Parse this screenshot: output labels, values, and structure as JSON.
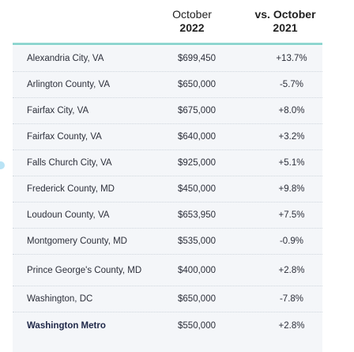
{
  "header": {
    "col_october_line1": "October",
    "col_october_line2": "2022",
    "col_change_line1": "vs. October",
    "col_change_line2": "2021"
  },
  "rows": [
    {
      "name": "Alexandria City, VA",
      "price": "$699,450",
      "change": "+13.7%"
    },
    {
      "name": "Arlington County, VA",
      "price": "$650,000",
      "change": "-5.7%"
    },
    {
      "name": "Fairfax City, VA",
      "price": "$675,000",
      "change": "+8.0%"
    },
    {
      "name": "Fairfax County, VA",
      "price": "$640,000",
      "change": "+3.2%"
    },
    {
      "name": "Falls Church City, VA",
      "price": "$925,000",
      "change": "+5.1%"
    },
    {
      "name": "Frederick County, MD",
      "price": "$450,000",
      "change": "+9.8%"
    },
    {
      "name": "Loudoun County, VA",
      "price": "$653,950",
      "change": "+7.5%"
    },
    {
      "name": "Montgomery County, MD",
      "price": "$535,000",
      "change": "-0.9%"
    },
    {
      "name": "Prince George's County, MD",
      "price": "$400,000",
      "change": "+2.8%"
    },
    {
      "name": "Washington, DC",
      "price": "$650,000",
      "change": "-7.8%"
    },
    {
      "name": "Washington Metro",
      "price": "$550,000",
      "change": "+2.8%"
    }
  ],
  "colors": {
    "rule": "#8fd6d0",
    "table_background": "#f4f6f9",
    "total_label": "#1e2748"
  }
}
